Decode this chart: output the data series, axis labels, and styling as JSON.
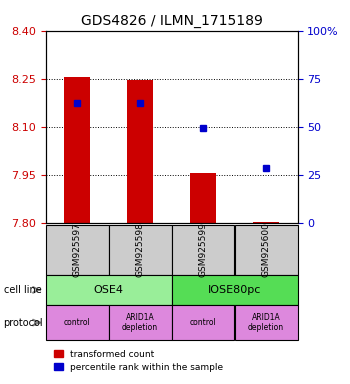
{
  "title": "GDS4826 / ILMN_1715189",
  "samples": [
    "GSM925597",
    "GSM925598",
    "GSM925599",
    "GSM925600"
  ],
  "bar_values": [
    8.255,
    8.245,
    7.955,
    7.802
  ],
  "bar_base": 7.8,
  "blue_values": [
    8.175,
    8.175,
    8.095,
    7.97
  ],
  "ylim_left": [
    7.8,
    8.4
  ],
  "ylim_right": [
    0,
    100
  ],
  "yticks_left": [
    7.8,
    7.95,
    8.1,
    8.25,
    8.4
  ],
  "yticks_right": [
    0,
    25,
    50,
    75,
    100
  ],
  "ytick_labels_right": [
    "0",
    "25",
    "50",
    "75",
    "100%"
  ],
  "bar_color": "#cc0000",
  "blue_color": "#0000cc",
  "cell_line_colors": [
    "#99ee99",
    "#55dd55"
  ],
  "cell_lines": [
    "OSE4",
    "IOSE80pc"
  ],
  "cell_line_spans": [
    [
      0,
      2
    ],
    [
      2,
      4
    ]
  ],
  "protocol_color": "#dd88dd",
  "protocols": [
    "control",
    "ARID1A\ndepletion",
    "control",
    "ARID1A\ndepletion"
  ],
  "sample_box_color": "#cccccc",
  "left_tick_color": "#cc0000",
  "right_tick_color": "#0000cc",
  "bar_width": 0.4,
  "legend_red_label": "transformed count",
  "legend_blue_label": "percentile rank within the sample",
  "cell_line_label": "cell line",
  "protocol_label": "protocol"
}
